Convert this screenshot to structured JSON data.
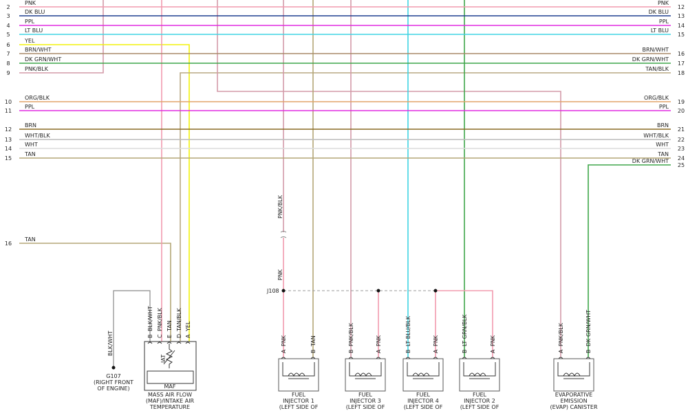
{
  "left_wires": [
    {
      "pin": "2",
      "label": "PNK",
      "color": "#f29aae"
    },
    {
      "pin": "3",
      "label": "DK BLU",
      "color": "#1f3f8f"
    },
    {
      "pin": "4",
      "label": "PPL",
      "color": "#e02ae0"
    },
    {
      "pin": "5",
      "label": "LT BLU",
      "color": "#3fd3e3"
    },
    {
      "pin": "6",
      "label": "YEL",
      "color": "#f2f20a"
    },
    {
      "pin": "7",
      "label": "BRN/WHT",
      "color": "#a88a68"
    },
    {
      "pin": "8",
      "label": "DK GRN/WHT",
      "color": "#3ea64a"
    },
    {
      "pin": "9",
      "label": "PNK/BLK",
      "color": "#d39aa8"
    },
    {
      "pin": "10",
      "label": "ORG/BLK",
      "color": "#e2a468"
    },
    {
      "pin": "11",
      "label": "PPL",
      "color": "#e02ae0"
    },
    {
      "pin": "12",
      "label": "BRN",
      "color": "#8a6a22"
    },
    {
      "pin": "13",
      "label": "WHT/BLK",
      "color": "#bcbcbc"
    },
    {
      "pin": "14",
      "label": "WHT",
      "color": "#dcdcdc"
    },
    {
      "pin": "15",
      "label": "TAN",
      "color": "#b4a676"
    },
    {
      "pin": "16",
      "label": "TAN",
      "color": "#b4a676"
    }
  ],
  "right_wires": [
    {
      "pin": "12",
      "label": "PNK"
    },
    {
      "pin": "13",
      "label": "DK BLU"
    },
    {
      "pin": "14",
      "label": "PPL"
    },
    {
      "pin": "15",
      "label": "LT BLU"
    },
    {
      "pin": "16",
      "label": "BRN/WHT"
    },
    {
      "pin": "17",
      "label": "DK GRN/WHT"
    },
    {
      "pin": "18",
      "label": "TAN/BLK",
      "color": "#b8a882"
    },
    {
      "pin": "19",
      "label": "ORG/BLK"
    },
    {
      "pin": "20",
      "label": "PPL"
    },
    {
      "pin": "21",
      "label": "BRN"
    },
    {
      "pin": "22",
      "label": "WHT/BLK"
    },
    {
      "pin": "23",
      "label": "WHT"
    },
    {
      "pin": "24",
      "label": "TAN"
    },
    {
      "pin": "25",
      "label": "DK GRN/WHT",
      "color": "#3ea64a"
    }
  ],
  "splice": "J108",
  "inline_labels": [
    "PNK/BLK",
    "PNK"
  ],
  "ground": {
    "wire": "BLK/WHT",
    "name": [
      "G107",
      "(RIGHT FRONT",
      "OF ENGINE)"
    ]
  },
  "maf": {
    "pins": [
      [
        "B",
        "BLK/WHT"
      ],
      [
        "C",
        "PNK/BLK"
      ],
      [
        "E",
        "TAN"
      ],
      [
        "D",
        "TAN/BLK"
      ],
      [
        "A",
        "YEL"
      ]
    ],
    "iat": "IAT",
    "inner": "MAF",
    "name": [
      "MASS AIR FLOW",
      "(MAF)/INTAKE AIR",
      "TEMPERATURE"
    ]
  },
  "components": [
    {
      "pins": [
        [
          "A",
          "PNK"
        ],
        [
          "B",
          "TAN"
        ]
      ],
      "name": [
        "FUEL",
        "INJECTOR 1",
        "(LEFT SIDE OF"
      ]
    },
    {
      "pins": [
        [
          "B",
          "PNK/BLK"
        ],
        [
          "A",
          "PNK"
        ]
      ],
      "name": [
        "FUEL",
        "INJECTOR 3",
        "(LEFT SIDE OF"
      ]
    },
    {
      "pins": [
        [
          "B",
          "LT BLU/BLK"
        ],
        [
          "A",
          "PNK"
        ]
      ],
      "name": [
        "FUEL",
        "INJECTOR 4",
        "(LEFT SIDE OF"
      ]
    },
    {
      "pins": [
        [
          "B",
          "LT GRN/BLK"
        ],
        [
          "A",
          "PNK"
        ]
      ],
      "name": [
        "FUEL",
        "INJECTOR 2",
        "(LEFT SIDE OF"
      ]
    },
    {
      "pins": [
        [
          "A",
          "PNK/BLK"
        ],
        [
          "B",
          "DK GRN/WHT"
        ]
      ],
      "name": [
        "EVAPORATIVE",
        "EMISSION",
        "(EVAP) CANISTER"
      ]
    }
  ]
}
